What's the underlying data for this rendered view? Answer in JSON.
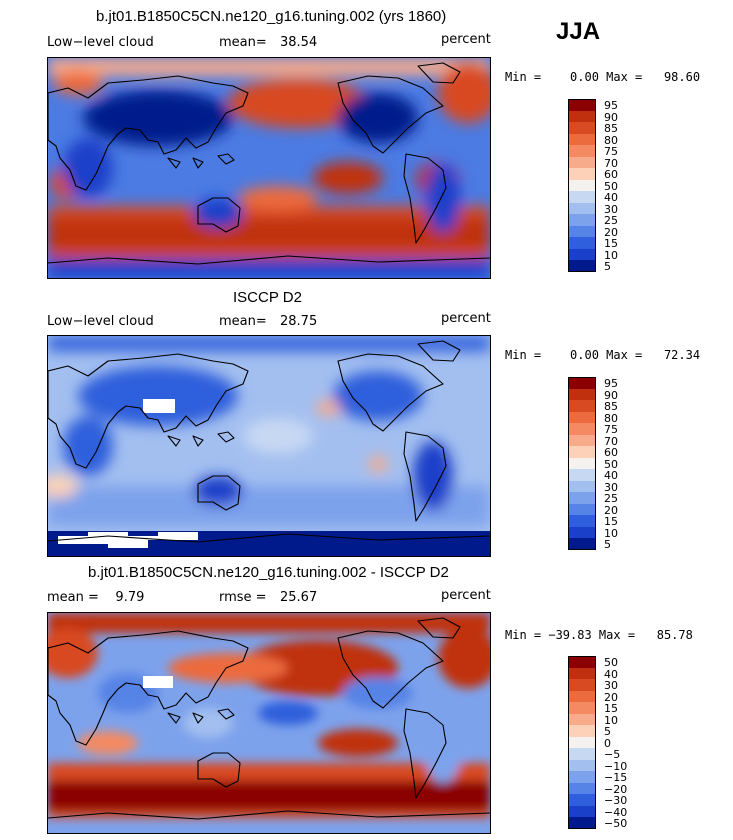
{
  "season": "JJA",
  "panels": [
    {
      "id": "model",
      "title": "b.jt01.B1850C5CN.ne120_g16.tuning.002 (yrs 1860)",
      "left_label": "Low−level cloud",
      "stat_label": "mean=",
      "stat_value": "38.54",
      "unit": "percent",
      "minmax": "Min =    0.00 Max =   98.60",
      "colorbar_labels": [
        "95",
        "90",
        "85",
        "80",
        "75",
        "70",
        "60",
        "50",
        "40",
        "30",
        "25",
        "20",
        "15",
        "10",
        "5"
      ]
    },
    {
      "id": "obs",
      "title": "ISCCP D2",
      "left_label": "Low−level cloud",
      "stat_label": "mean=",
      "stat_value": "28.75",
      "unit": "percent",
      "minmax": "Min =    0.00 Max =   72.34",
      "colorbar_labels": [
        "95",
        "90",
        "85",
        "80",
        "75",
        "70",
        "60",
        "50",
        "40",
        "30",
        "25",
        "20",
        "15",
        "10",
        "5"
      ]
    },
    {
      "id": "diff",
      "title": "b.jt01.B1850C5CN.ne120_g16.tuning.002 - ISCCP D2",
      "left_label": "mean =    9.79",
      "stat_label": "rmse =",
      "stat_value": "25.67",
      "unit": "percent",
      "minmax": "Min = −39.83 Max =   85.78",
      "colorbar_labels": [
        "50",
        "40",
        "30",
        "20",
        "15",
        "10",
        "5",
        "0",
        "−5",
        "−10",
        "−15",
        "−20",
        "−30",
        "−40",
        "−50"
      ]
    }
  ],
  "colors": {
    "ramp": [
      "#8b0000",
      "#c0300f",
      "#d84a22",
      "#ec6b3e",
      "#f38a62",
      "#f8ab8b",
      "#fcd1b8",
      "#f4f1ef",
      "#c7d8f3",
      "#a3bff0",
      "#7da2ec",
      "#5683e6",
      "#2f5fdc",
      "#1a40c9",
      "#001a8c"
    ]
  }
}
